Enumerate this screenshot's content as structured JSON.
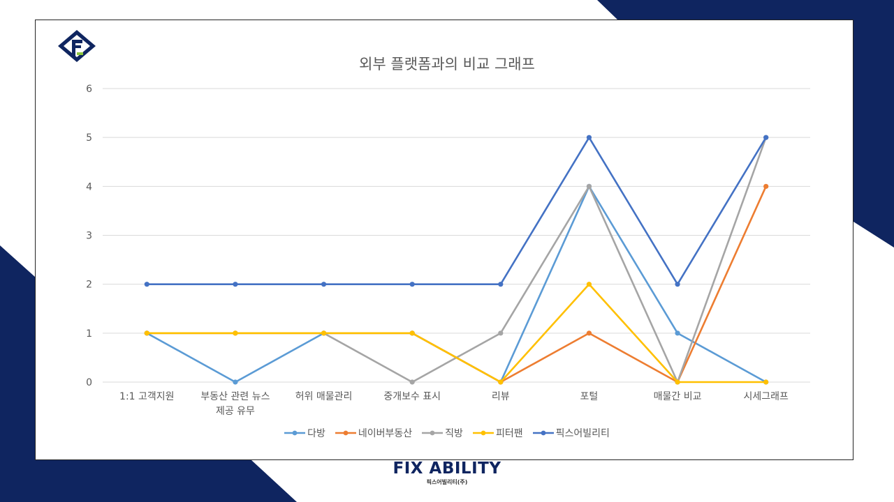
{
  "colors": {
    "navy": "#0f2560",
    "grid": "#d9d9d9",
    "axis_text": "#595959"
  },
  "logo": {
    "icon": "fix-ability-logo-icon"
  },
  "brand": {
    "name": "FIX ABILITY",
    "subtitle": "픽스어빌리티(주)"
  },
  "chart_data": {
    "type": "line",
    "title": "외부 플랫폼과의 비교 그래프",
    "categories": [
      "1:1 고객지원",
      "부동산 관련 뉴스 제공 유무",
      "허위 매물관리",
      "중개보수 표시",
      "리뷰",
      "포털",
      "매물간 비교",
      "시세그래프"
    ],
    "category_lines": [
      [
        "1:1 고객지원"
      ],
      [
        "부동산 관련 뉴스",
        "제공 유무"
      ],
      [
        "허위 매물관리"
      ],
      [
        "중개보수 표시"
      ],
      [
        "리뷰"
      ],
      [
        "포털"
      ],
      [
        "매물간 비교"
      ],
      [
        "시세그래프"
      ]
    ],
    "ylim": [
      0,
      6
    ],
    "yticks": [
      0,
      1,
      2,
      3,
      4,
      5,
      6
    ],
    "grid": true,
    "legend_position": "bottom",
    "series": [
      {
        "name": "다방",
        "color": "#5b9bd5",
        "values": [
          1,
          0,
          1,
          1,
          0,
          4,
          1,
          0
        ]
      },
      {
        "name": "네이버부동산",
        "color": "#ed7d31",
        "values": [
          1,
          1,
          1,
          1,
          0,
          1,
          0,
          4
        ]
      },
      {
        "name": "직방",
        "color": "#a5a5a5",
        "values": [
          1,
          1,
          1,
          0,
          1,
          4,
          0,
          5
        ]
      },
      {
        "name": "피터팬",
        "color": "#ffc000",
        "values": [
          1,
          1,
          1,
          1,
          0,
          2,
          0,
          0
        ]
      },
      {
        "name": "픽스어빌리티",
        "color": "#4472c4",
        "values": [
          2,
          2,
          2,
          2,
          2,
          5,
          2,
          5
        ]
      }
    ]
  }
}
